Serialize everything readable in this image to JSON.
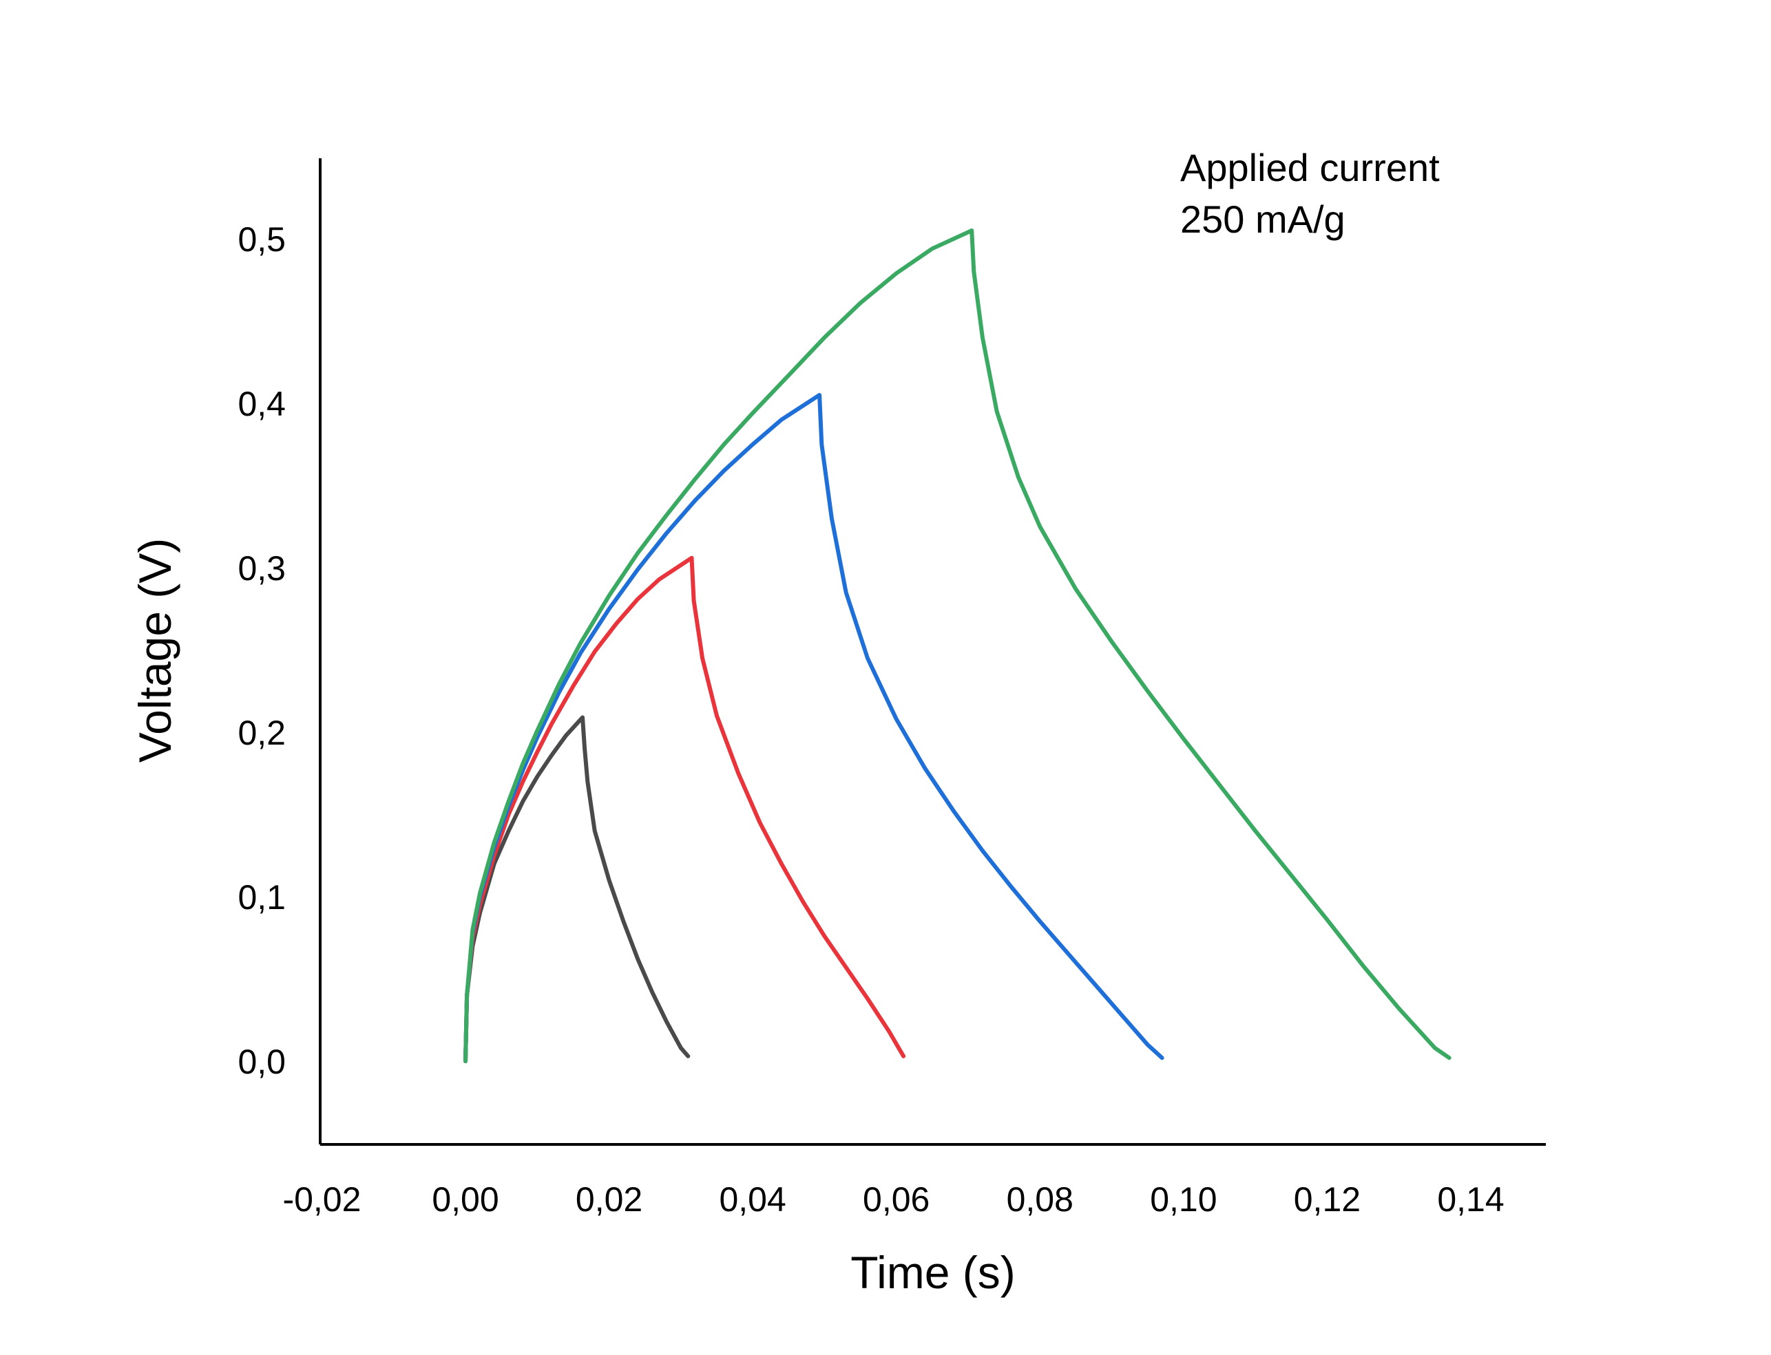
{
  "chart_data": {
    "type": "line",
    "title": "",
    "xlabel": "Time (s)",
    "ylabel": "Voltage (V)",
    "xlim": [
      -0.02,
      0.15
    ],
    "ylim": [
      -0.05,
      0.55
    ],
    "x_ticks": [
      -0.02,
      0.0,
      0.02,
      0.04,
      0.06,
      0.08,
      0.1,
      0.12,
      0.14
    ],
    "x_tick_labels": [
      "-0,02",
      "0,00",
      "0,02",
      "0,04",
      "0,06",
      "0,08",
      "0,10",
      "0,12",
      "0,14"
    ],
    "y_ticks": [
      0.0,
      0.1,
      0.2,
      0.3,
      0.4,
      0.5
    ],
    "y_tick_labels": [
      "0,0",
      "0,1",
      "0,2",
      "0,3",
      "0,4",
      "0,5"
    ],
    "grid": false,
    "legend": "none",
    "annotation": [
      "Applied current",
      "250 mA/g"
    ],
    "series": [
      {
        "color": "#4a4a4a",
        "points": [
          [
            0.0,
            0.0
          ],
          [
            0.0002,
            0.04
          ],
          [
            0.001,
            0.07
          ],
          [
            0.002,
            0.09
          ],
          [
            0.004,
            0.12
          ],
          [
            0.006,
            0.14
          ],
          [
            0.008,
            0.158
          ],
          [
            0.01,
            0.173
          ],
          [
            0.012,
            0.186
          ],
          [
            0.014,
            0.198
          ],
          [
            0.0163,
            0.209
          ],
          [
            0.0166,
            0.19
          ],
          [
            0.017,
            0.17
          ],
          [
            0.018,
            0.14
          ],
          [
            0.02,
            0.11
          ],
          [
            0.022,
            0.085
          ],
          [
            0.024,
            0.062
          ],
          [
            0.026,
            0.042
          ],
          [
            0.028,
            0.024
          ],
          [
            0.03,
            0.008
          ],
          [
            0.031,
            0.003
          ]
        ]
      },
      {
        "color": "#e8343a",
        "points": [
          [
            0.0,
            0.0
          ],
          [
            0.0002,
            0.04
          ],
          [
            0.001,
            0.075
          ],
          [
            0.002,
            0.095
          ],
          [
            0.004,
            0.125
          ],
          [
            0.006,
            0.15
          ],
          [
            0.008,
            0.17
          ],
          [
            0.01,
            0.188
          ],
          [
            0.012,
            0.205
          ],
          [
            0.015,
            0.228
          ],
          [
            0.018,
            0.249
          ],
          [
            0.021,
            0.266
          ],
          [
            0.024,
            0.281
          ],
          [
            0.027,
            0.293
          ],
          [
            0.0315,
            0.306
          ],
          [
            0.0318,
            0.28
          ],
          [
            0.033,
            0.245
          ],
          [
            0.035,
            0.21
          ],
          [
            0.038,
            0.175
          ],
          [
            0.041,
            0.145
          ],
          [
            0.044,
            0.12
          ],
          [
            0.047,
            0.097
          ],
          [
            0.05,
            0.076
          ],
          [
            0.053,
            0.057
          ],
          [
            0.056,
            0.038
          ],
          [
            0.059,
            0.018
          ],
          [
            0.061,
            0.003
          ]
        ]
      },
      {
        "color": "#1f6fd9",
        "points": [
          [
            0.0,
            0.0
          ],
          [
            0.0002,
            0.04
          ],
          [
            0.001,
            0.078
          ],
          [
            0.002,
            0.1
          ],
          [
            0.004,
            0.13
          ],
          [
            0.006,
            0.155
          ],
          [
            0.008,
            0.177
          ],
          [
            0.01,
            0.197
          ],
          [
            0.013,
            0.224
          ],
          [
            0.016,
            0.248
          ],
          [
            0.02,
            0.275
          ],
          [
            0.024,
            0.299
          ],
          [
            0.028,
            0.321
          ],
          [
            0.032,
            0.341
          ],
          [
            0.036,
            0.359
          ],
          [
            0.04,
            0.375
          ],
          [
            0.044,
            0.39
          ],
          [
            0.0493,
            0.405
          ],
          [
            0.0496,
            0.375
          ],
          [
            0.051,
            0.33
          ],
          [
            0.053,
            0.285
          ],
          [
            0.056,
            0.245
          ],
          [
            0.06,
            0.208
          ],
          [
            0.064,
            0.178
          ],
          [
            0.068,
            0.152
          ],
          [
            0.072,
            0.128
          ],
          [
            0.076,
            0.106
          ],
          [
            0.08,
            0.085
          ],
          [
            0.084,
            0.065
          ],
          [
            0.088,
            0.045
          ],
          [
            0.092,
            0.025
          ],
          [
            0.095,
            0.01
          ],
          [
            0.097,
            0.002
          ]
        ]
      },
      {
        "color": "#3aaa63",
        "points": [
          [
            0.0,
            0.0
          ],
          [
            0.0002,
            0.04
          ],
          [
            0.001,
            0.08
          ],
          [
            0.002,
            0.102
          ],
          [
            0.004,
            0.133
          ],
          [
            0.006,
            0.158
          ],
          [
            0.008,
            0.181
          ],
          [
            0.01,
            0.201
          ],
          [
            0.013,
            0.229
          ],
          [
            0.016,
            0.254
          ],
          [
            0.02,
            0.283
          ],
          [
            0.024,
            0.309
          ],
          [
            0.028,
            0.332
          ],
          [
            0.032,
            0.354
          ],
          [
            0.036,
            0.375
          ],
          [
            0.04,
            0.394
          ],
          [
            0.045,
            0.417
          ],
          [
            0.05,
            0.44
          ],
          [
            0.055,
            0.461
          ],
          [
            0.06,
            0.479
          ],
          [
            0.065,
            0.494
          ],
          [
            0.0705,
            0.505
          ],
          [
            0.0708,
            0.48
          ],
          [
            0.072,
            0.44
          ],
          [
            0.074,
            0.395
          ],
          [
            0.077,
            0.355
          ],
          [
            0.08,
            0.325
          ],
          [
            0.085,
            0.287
          ],
          [
            0.09,
            0.255
          ],
          [
            0.095,
            0.225
          ],
          [
            0.1,
            0.196
          ],
          [
            0.105,
            0.168
          ],
          [
            0.11,
            0.14
          ],
          [
            0.115,
            0.113
          ],
          [
            0.12,
            0.086
          ],
          [
            0.125,
            0.058
          ],
          [
            0.13,
            0.032
          ],
          [
            0.135,
            0.008
          ],
          [
            0.137,
            0.002
          ]
        ]
      }
    ]
  }
}
